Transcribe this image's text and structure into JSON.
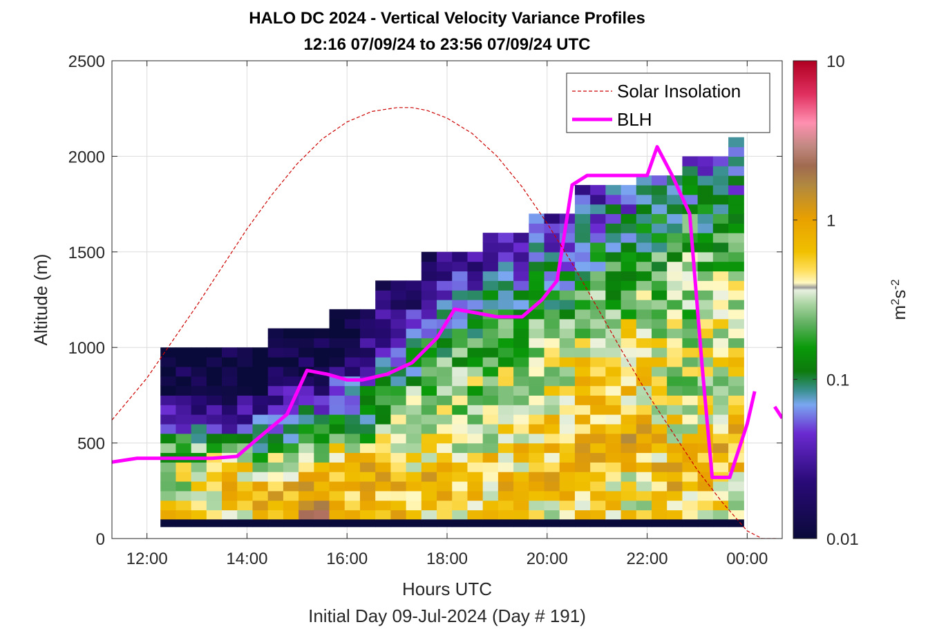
{
  "title_line1": "HALO DC 2024 - Vertical Velocity Variance Profiles",
  "title_line2": "12:16 07/09/24 to 23:56 07/09/24  UTC",
  "colorbar": {
    "label_base": "m",
    "label_exp1": "2",
    "label_mid": "s",
    "label_exp2": "-2",
    "ticks": [
      {
        "value": 0.01,
        "label": "0.01"
      },
      {
        "value": 0.1,
        "label": "0.1"
      },
      {
        "value": 1,
        "label": "1"
      },
      {
        "value": 10,
        "label": "10"
      }
    ],
    "scale": "log",
    "range": [
      0.01,
      10
    ]
  },
  "legend": {
    "solar": "Solar Insolation",
    "blh": "BLH"
  },
  "colors": {
    "blh": "#ff00ff",
    "solar": "#cc0000",
    "background": "#ffffff"
  },
  "chart_data": {
    "type": "heatmap",
    "title": "HALO DC 2024 - Vertical Velocity Variance Profiles",
    "subtitle": "12:16 07/09/24 to 23:56 07/09/24  UTC",
    "xlabel": "Hours UTC",
    "xlabel2": "Initial Day 09-Jul-2024 (Day # 191)",
    "ylabel": "Altitude (m)",
    "x_ticks": [
      "12:00",
      "14:00",
      "16:00",
      "18:00",
      "20:00",
      "22:00",
      "00:00"
    ],
    "x_tick_hours": [
      12,
      14,
      16,
      18,
      20,
      22,
      24
    ],
    "y_ticks": [
      0,
      500,
      1000,
      1500,
      2000,
      2500
    ],
    "xlim_hours": [
      11.3,
      24.7
    ],
    "ylim": [
      0,
      2500
    ],
    "grid": true,
    "legend_position": "top-right",
    "heatmap": {
      "start_hour": 12.27,
      "end_hour": 23.93,
      "columns": 38,
      "bin_height_m": 50,
      "bottom_m": 100,
      "profile_bands": [
        [
          18,
          0.9,
          0.45,
          0.25,
          0.25,
          0.15,
          0.045,
          0.03,
          0.015,
          0.01,
          0.01
        ],
        [
          18,
          0.45,
          0.55,
          0.55,
          0.3,
          0.18,
          0.035,
          0.02,
          0.012,
          0.01,
          0.01
        ],
        [
          20,
          0.75,
          0.9,
          0.6,
          0.35,
          0.09,
          0.06,
          0.03,
          0.015,
          0.01,
          0.01
        ],
        [
          22,
          1.8,
          0.9,
          0.6,
          0.35,
          0.12,
          0.07,
          0.03,
          0.015,
          0.01,
          0.01
        ],
        [
          25,
          0.8,
          0.6,
          0.8,
          0.5,
          0.12,
          0.12,
          0.06,
          0.03,
          0.018,
          0.012
        ],
        [
          28,
          0.6,
          0.9,
          0.5,
          0.45,
          0.3,
          0.25,
          0.11,
          0.06,
          0.035,
          0.02
        ],
        [
          30,
          0.5,
          0.7,
          0.45,
          0.4,
          0.3,
          0.25,
          0.15,
          0.09,
          0.05,
          0.03
        ],
        [
          32,
          0.5,
          0.6,
          0.55,
          0.45,
          0.35,
          0.28,
          0.18,
          0.11,
          0.06,
          0.035
        ],
        [
          35,
          0.5,
          0.7,
          0.9,
          0.55,
          0.5,
          0.35,
          0.18,
          0.1,
          0.07,
          0.04
        ],
        [
          36,
          0.45,
          0.45,
          1.0,
          0.6,
          0.55,
          0.4,
          0.25,
          0.15,
          0.08,
          0.045
        ],
        [
          38,
          0.45,
          0.9,
          0.45,
          0.35,
          0.3,
          0.3,
          0.25,
          0.2,
          0.12,
          0.06
        ],
        [
          40,
          0.4,
          0.6,
          0.9,
          0.4,
          0.45,
          0.35,
          0.25,
          0.12,
          0.08,
          0.05
        ]
      ]
    },
    "series": [
      {
        "name": "BLH",
        "type": "line",
        "x_hours": [
          11.3,
          11.8,
          12.3,
          12.8,
          13.3,
          13.8,
          14.2,
          14.8,
          15.2,
          15.6,
          16.0,
          16.3,
          16.8,
          17.3,
          17.8,
          18.15,
          18.6,
          19.0,
          19.5,
          19.9,
          20.2,
          20.5,
          20.8,
          21.2,
          21.6,
          22.0,
          22.2,
          22.5,
          22.85,
          23.1,
          23.3,
          23.65,
          24.0,
          24.15
        ],
        "y": [
          400,
          420,
          420,
          420,
          420,
          430,
          520,
          650,
          880,
          860,
          830,
          830,
          860,
          920,
          1050,
          1200,
          1180,
          1160,
          1160,
          1250,
          1350,
          1850,
          1900,
          1900,
          1900,
          1900,
          2050,
          1900,
          1700,
          900,
          320,
          320,
          600,
          770
        ]
      },
      {
        "name": "BLH",
        "type": "line_segment",
        "x_hours": [
          24.55,
          24.7
        ],
        "y": [
          690,
          630
        ]
      },
      {
        "name": "Solar Insolation",
        "type": "dashed",
        "x_hours": [
          11.3,
          12.0,
          12.5,
          13.0,
          13.5,
          14.0,
          14.5,
          15.0,
          15.5,
          16.0,
          16.5,
          17.0,
          17.3,
          17.6,
          18.0,
          18.5,
          19.0,
          19.5,
          20.0,
          20.5,
          21.0,
          21.5,
          22.0,
          22.5,
          23.0,
          23.5,
          24.0,
          24.3,
          24.6
        ],
        "y": [
          620,
          840,
          1030,
          1220,
          1420,
          1620,
          1800,
          1960,
          2090,
          2180,
          2235,
          2255,
          2255,
          2240,
          2200,
          2120,
          2000,
          1840,
          1650,
          1440,
          1210,
          980,
          760,
          560,
          360,
          190,
          40,
          0,
          0
        ]
      }
    ]
  }
}
